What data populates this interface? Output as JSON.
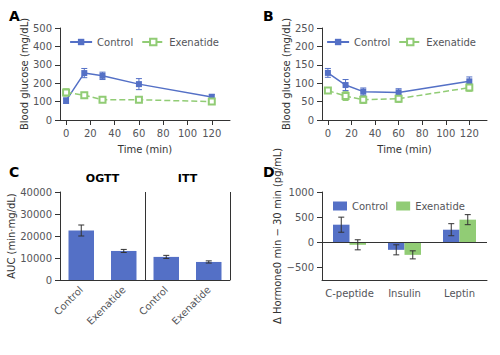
{
  "chart_data": [
    {
      "type": "line",
      "title": "A",
      "x": [
        0,
        15,
        30,
        60,
        120
      ],
      "series": [
        {
          "name": "Control",
          "values": [
            105,
            255,
            240,
            195,
            125
          ],
          "errors": [
            15,
            25,
            20,
            30,
            15
          ],
          "line_style": "solid",
          "marker": "square"
        },
        {
          "name": "Exenatide",
          "values": [
            150,
            135,
            110,
            110,
            100
          ],
          "errors": [
            20,
            15,
            10,
            10,
            12
          ],
          "line_style": "dashed",
          "marker": "hollow_square"
        }
      ],
      "xlabel": "Time (min)",
      "ylabel": "Blood glucose (mg/dL)",
      "xlim": [
        -5,
        135
      ],
      "xticks": [
        0,
        20,
        40,
        60,
        80,
        100,
        120
      ],
      "ylim": [
        0,
        500
      ],
      "yticks": [
        0,
        100,
        200,
        300,
        400,
        500
      ],
      "legend": "upper right",
      "grid": false
    },
    {
      "type": "line",
      "title": "B",
      "x": [
        0,
        15,
        30,
        60,
        120
      ],
      "series": [
        {
          "name": "Control",
          "values": [
            128,
            95,
            77,
            75,
            105
          ],
          "errors": [
            12,
            15,
            10,
            10,
            12
          ],
          "line_style": "solid",
          "marker": "square"
        },
        {
          "name": "Exenatide",
          "values": [
            80,
            65,
            55,
            58,
            88
          ],
          "errors": [
            8,
            12,
            10,
            10,
            10
          ],
          "line_style": "dashed",
          "marker": "hollow_square"
        }
      ],
      "xlabel": "Time (min)",
      "ylabel": "Blood glucose (mg/dL)",
      "xlim": [
        -5,
        135
      ],
      "xticks": [
        0,
        20,
        40,
        60,
        80,
        100,
        120
      ],
      "ylim": [
        0,
        250
      ],
      "yticks": [
        0,
        50,
        100,
        150,
        200,
        250
      ],
      "legend": "upper right",
      "grid": false
    },
    {
      "type": "bar",
      "title": "C",
      "categories": [
        "Control",
        "Exenatide",
        "Control",
        "Exenatide"
      ],
      "values": [
        22500,
        13200,
        10500,
        8200
      ],
      "errors": [
        2500,
        700,
        700,
        500
      ],
      "ylabel": "AUC (min·mg/dL)",
      "ylim": [
        0,
        40000
      ],
      "yticks": [
        0,
        10000,
        20000,
        30000,
        40000
      ],
      "annotations": [
        "OGTT",
        "ITT"
      ],
      "grid": false
    },
    {
      "type": "bar",
      "title": "D",
      "categories": [
        "C-peptide",
        "Insulin",
        "Leptin"
      ],
      "series": [
        {
          "name": "Control",
          "values": [
            350,
            -150,
            250
          ],
          "errors": [
            150,
            100,
            120
          ]
        },
        {
          "name": "Exenatide",
          "values": [
            -50,
            -250,
            450
          ],
          "errors": [
            100,
            80,
            100
          ]
        }
      ],
      "ylabel": "Δ Hormone0 min − 30 min (pg/mL)",
      "ylim": [
        -750,
        1000
      ],
      "yticks": [
        {
          "value": -500,
          "label": "−500"
        },
        0,
        500,
        1000
      ],
      "legend": "upper left",
      "grid": false
    }
  ]
}
